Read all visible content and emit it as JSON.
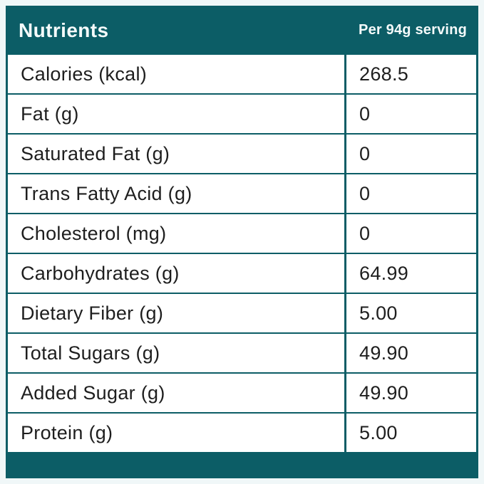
{
  "table": {
    "header": {
      "nutrients_label": "Nutrients",
      "serving_label": "Per 94g serving"
    },
    "rows": [
      {
        "label": "Calories (kcal)",
        "value": "268.5"
      },
      {
        "label": "Fat (g)",
        "value": "0"
      },
      {
        "label": "Saturated Fat (g)",
        "value": "0"
      },
      {
        "label": "Trans Fatty Acid (g)",
        "value": "0"
      },
      {
        "label": "Cholesterol (mg)",
        "value": "0"
      },
      {
        "label": "Carbohydrates (g)",
        "value": "64.99"
      },
      {
        "label": "Dietary Fiber (g)",
        "value": "5.00"
      },
      {
        "label": "Total Sugars (g)",
        "value": "49.90"
      },
      {
        "label": "Added Sugar (g)",
        "value": "49.90"
      },
      {
        "label": "Protein (g)",
        "value": "5.00"
      }
    ],
    "colors": {
      "teal": "#0c5d66",
      "page_background": "#f0f7f8",
      "cell_background": "#ffffff",
      "header_text": "#f4fafa",
      "body_text": "#1e1e1e"
    }
  }
}
